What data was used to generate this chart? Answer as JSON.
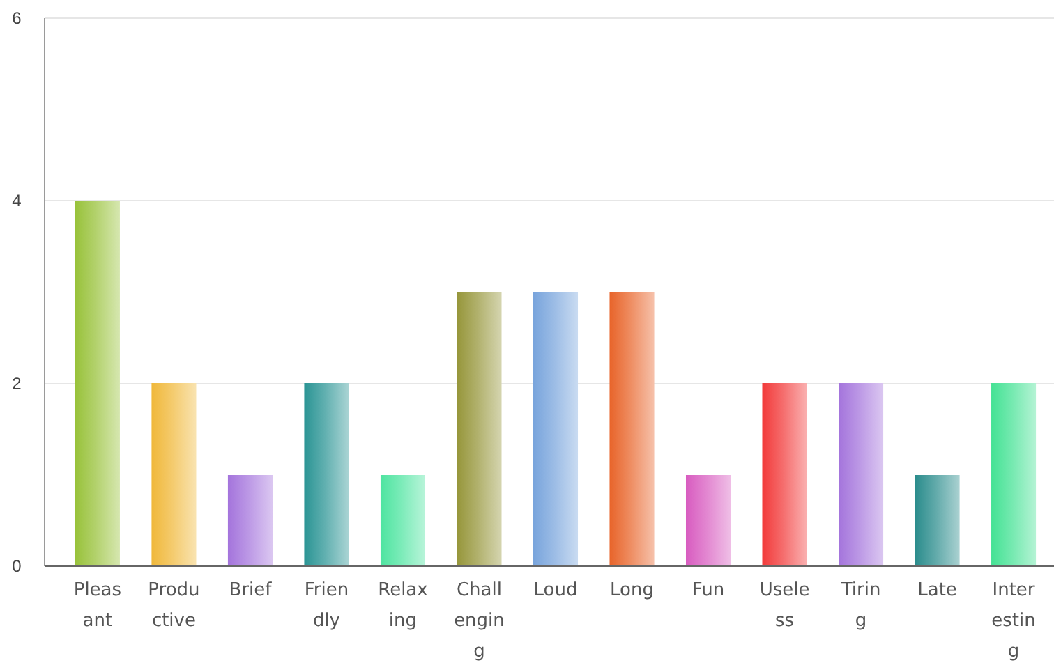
{
  "chart_data": {
    "type": "bar",
    "categories": [
      "Pleasant",
      "Productive",
      "Brief",
      "Friendly",
      "Relaxing",
      "Challenging",
      "Loud",
      "Long",
      "Fun",
      "Useless",
      "Tiring",
      "Late",
      "Interesting"
    ],
    "values": [
      4,
      2,
      1,
      2,
      1,
      3,
      3,
      3,
      1,
      2,
      2,
      1,
      2
    ],
    "colors": [
      "#98c23a",
      "#f0b83a",
      "#a474dc",
      "#2a9494",
      "#4ee4a0",
      "#96963a",
      "#78a4dc",
      "#e8642a",
      "#d85cc0",
      "#f23a3a",
      "#a474dc",
      "#2a8c8c",
      "#44e294"
    ],
    "ylim": [
      0,
      6
    ],
    "yticks": [
      0,
      2,
      4,
      6
    ],
    "grid": "y"
  }
}
